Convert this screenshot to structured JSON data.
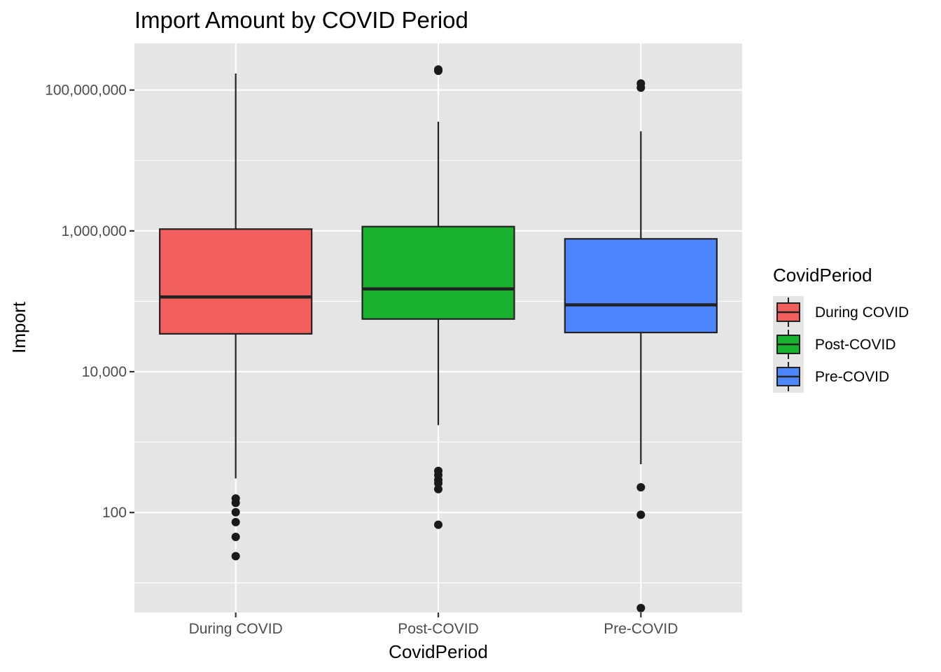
{
  "chart_data": {
    "type": "boxplot",
    "title": "Import Amount by COVID Period",
    "xlabel": "CovidPeriod",
    "ylabel": "Import",
    "y_scale": "log10",
    "ylim": [
      3.8,
      460000000
    ],
    "y_ticks": [
      {
        "value": 100,
        "label": "100"
      },
      {
        "value": 10000,
        "label": "10,000"
      },
      {
        "value": 1000000,
        "label": "1,000,000"
      },
      {
        "value": 100000000,
        "label": "100,000,000"
      }
    ],
    "categories": [
      "During COVID",
      "Post-COVID",
      "Pre-COVID"
    ],
    "boxes": [
      {
        "category": "During COVID",
        "whisker_low": 305,
        "q1": 34500,
        "median": 115000,
        "q3": 1060000,
        "whisker_high": 172000000,
        "outliers": [
          158,
          137,
          101,
          73,
          45,
          24
        ]
      },
      {
        "category": "Post-COVID",
        "whisker_low": 1740,
        "q1": 56000,
        "median": 150000,
        "q3": 1150000,
        "whisker_high": 35500000,
        "outliers": [
          196000000,
          188000000,
          390,
          340,
          290,
          260,
          215,
          67
        ]
      },
      {
        "category": "Pre-COVID",
        "whisker_low": 485,
        "q1": 36000,
        "median": 89000,
        "q3": 770000,
        "whisker_high": 26000000,
        "outliers": [
          124000000,
          108000000,
          228,
          93,
          4.4
        ]
      }
    ],
    "grid": true,
    "legend": {
      "title": "CovidPeriod",
      "placement": "right",
      "entries": [
        "During COVID",
        "Post-COVID",
        "Pre-COVID"
      ]
    },
    "colors": {
      "During COVID": "#F25F5C",
      "Post-COVID": "#19B22E",
      "Pre-COVID": "#4E86FF",
      "panel_background": "#E5E5E5",
      "grid": "#FFFFFF",
      "box_outline": "#222222"
    }
  }
}
